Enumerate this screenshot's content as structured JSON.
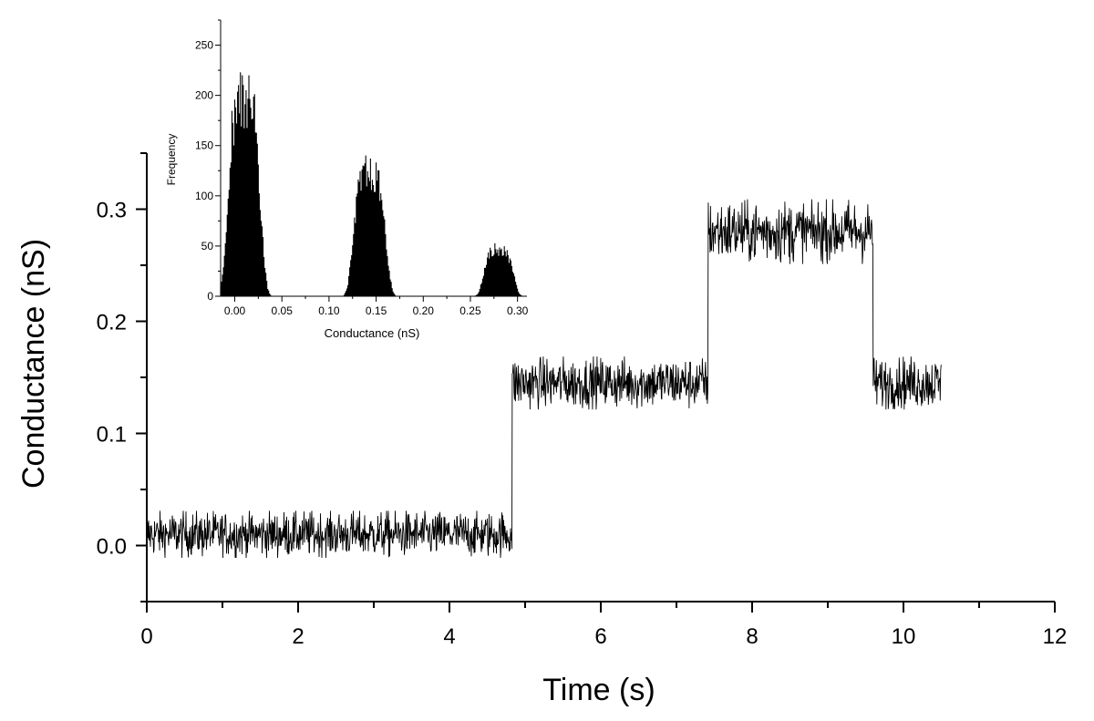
{
  "chart_data": [
    {
      "id": "main",
      "type": "line",
      "title": "",
      "xlabel": "Time (s)",
      "ylabel": "Conductance (nS)",
      "xlim": [
        0,
        12
      ],
      "ylim": [
        -0.05,
        0.35
      ],
      "xticks": [
        0,
        2,
        4,
        6,
        8,
        10,
        12
      ],
      "yticks": [
        0.0,
        0.1,
        0.2,
        0.3
      ],
      "xtick_labels": [
        "0",
        "2",
        "4",
        "6",
        "8",
        "10",
        "12"
      ],
      "ytick_labels": [
        "0.0",
        "0.1",
        "0.2",
        "0.3"
      ],
      "grid": false,
      "color": "#000000",
      "levels": [
        {
          "x_start": 0.0,
          "x_end": 4.83,
          "y_mean": 0.01,
          "noise_pp": 0.04
        },
        {
          "x_start": 4.83,
          "x_end": 7.42,
          "y_mean": 0.145,
          "noise_pp": 0.045
        },
        {
          "x_start": 7.42,
          "x_end": 9.6,
          "y_mean": 0.28,
          "noise_pp": 0.055
        },
        {
          "x_start": 9.6,
          "x_end": 10.5,
          "y_mean": 0.145,
          "noise_pp": 0.045
        }
      ]
    },
    {
      "id": "inset",
      "type": "bar",
      "title": "",
      "xlabel": "Conductance (nS)",
      "ylabel": "Frequency",
      "xlim": [
        -0.015,
        0.31
      ],
      "ylim": [
        0,
        275
      ],
      "xticks": [
        0.0,
        0.05,
        0.1,
        0.15,
        0.2,
        0.25,
        0.3
      ],
      "yticks": [
        0,
        50,
        100,
        150,
        200,
        250
      ],
      "xtick_labels": [
        "0.00",
        "0.05",
        "0.10",
        "0.15",
        "0.20",
        "0.25",
        "0.30"
      ],
      "ytick_labels": [
        "0",
        "50",
        "100",
        "150",
        "200",
        "250"
      ],
      "grid": false,
      "color": "#000000",
      "peaks": [
        {
          "center": 0.01,
          "peak_frequency": 195,
          "max_frequency": 220,
          "spread": 0.012
        },
        {
          "center": 0.143,
          "peak_frequency": 120,
          "max_frequency": 142,
          "spread": 0.012
        },
        {
          "center": 0.28,
          "peak_frequency": 45,
          "max_frequency": 65,
          "spread": 0.011
        }
      ]
    }
  ]
}
